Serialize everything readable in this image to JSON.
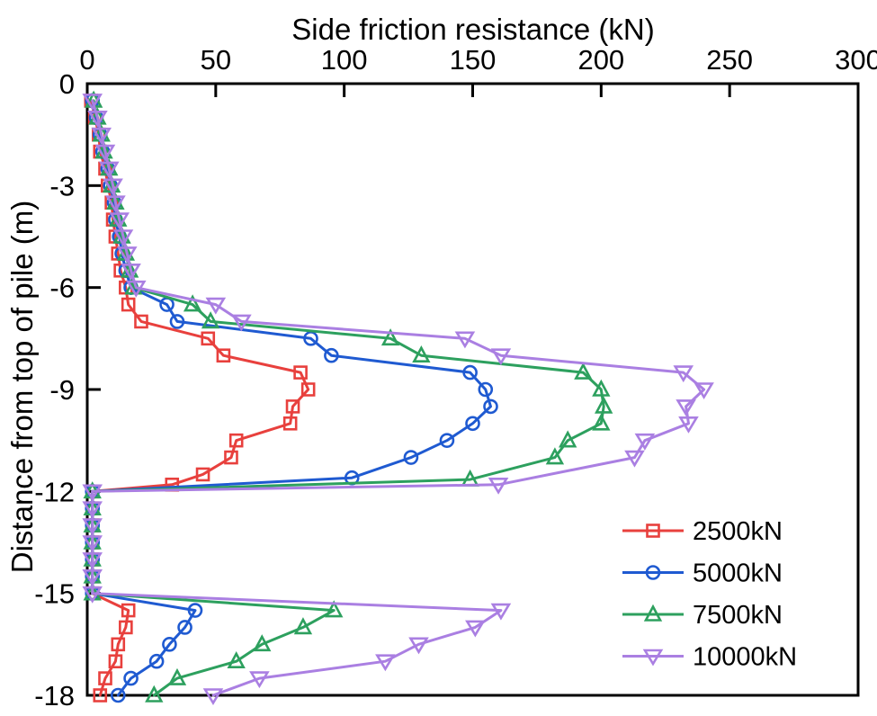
{
  "page": {
    "background": "#ffffff",
    "frame_color": "#000000"
  },
  "chart_data": {
    "type": "line",
    "title": "Side friction resistance (kN)",
    "xlabel": "Side friction resistance (kN)",
    "ylabel": "Distance from top of pile (m)",
    "axes": {
      "x": {
        "min": 0,
        "max": 300,
        "ticks": [
          0,
          50,
          100,
          150,
          200,
          250,
          300
        ],
        "side": "top"
      },
      "y": {
        "min": -18,
        "max": 0,
        "ticks": [
          0,
          -3,
          -6,
          -9,
          -12,
          -15,
          -18
        ],
        "side": "left"
      }
    },
    "grid": false,
    "frame": true,
    "legend": {
      "position": "inside-lower-right",
      "border": false
    },
    "series": [
      {
        "name": "2500kN",
        "color": "#e8403d",
        "marker": "open-square",
        "points": [
          [
            1.5,
            -0.5
          ],
          [
            3,
            -1
          ],
          [
            4.5,
            -1.5
          ],
          [
            5,
            -2
          ],
          [
            7,
            -2.5
          ],
          [
            8,
            -3
          ],
          [
            9.5,
            -3.5
          ],
          [
            10,
            -4
          ],
          [
            11,
            -4.5
          ],
          [
            12,
            -5
          ],
          [
            13,
            -5.5
          ],
          [
            15,
            -6
          ],
          [
            16,
            -6.5
          ],
          [
            21,
            -7
          ],
          [
            47,
            -7.5
          ],
          [
            53,
            -8
          ],
          [
            83,
            -8.5
          ],
          [
            86,
            -9
          ],
          [
            80,
            -9.5
          ],
          [
            79,
            -10
          ],
          [
            58,
            -10.5
          ],
          [
            56,
            -11
          ],
          [
            45,
            -11.5
          ],
          [
            33,
            -11.8
          ],
          [
            2,
            -12
          ],
          [
            2,
            -12.5
          ],
          [
            2,
            -13
          ],
          [
            2,
            -13.5
          ],
          [
            2,
            -14
          ],
          [
            2,
            -14.5
          ],
          [
            2,
            -15
          ],
          [
            16,
            -15.5
          ],
          [
            15,
            -16
          ],
          [
            12,
            -16.5
          ],
          [
            11,
            -17
          ],
          [
            7,
            -17.5
          ],
          [
            5,
            -18
          ]
        ]
      },
      {
        "name": "5000kN",
        "color": "#1f5ad1",
        "marker": "open-circle",
        "points": [
          [
            2,
            -0.5
          ],
          [
            3.5,
            -1
          ],
          [
            5,
            -1.5
          ],
          [
            6,
            -2
          ],
          [
            8,
            -2.5
          ],
          [
            9,
            -3
          ],
          [
            10.5,
            -3.5
          ],
          [
            11,
            -4
          ],
          [
            12.5,
            -4.5
          ],
          [
            13.5,
            -5
          ],
          [
            15,
            -5.5
          ],
          [
            17,
            -6
          ],
          [
            31,
            -6.5
          ],
          [
            35,
            -7
          ],
          [
            87,
            -7.5
          ],
          [
            95,
            -8
          ],
          [
            149,
            -8.5
          ],
          [
            155,
            -9
          ],
          [
            157,
            -9.5
          ],
          [
            150,
            -10
          ],
          [
            140,
            -10.5
          ],
          [
            126,
            -11
          ],
          [
            103,
            -11.6
          ],
          [
            2,
            -12
          ],
          [
            2,
            -12.5
          ],
          [
            2,
            -13
          ],
          [
            2,
            -13.5
          ],
          [
            2,
            -14
          ],
          [
            2,
            -14.5
          ],
          [
            2,
            -15
          ],
          [
            42,
            -15.5
          ],
          [
            38,
            -16
          ],
          [
            32,
            -16.5
          ],
          [
            27,
            -17
          ],
          [
            17,
            -17.5
          ],
          [
            12,
            -18
          ]
        ]
      },
      {
        "name": "7500kN",
        "color": "#2da05e",
        "marker": "open-triangle-up",
        "points": [
          [
            2.5,
            -0.5
          ],
          [
            4,
            -1
          ],
          [
            5.5,
            -1.5
          ],
          [
            6.5,
            -2
          ],
          [
            8.5,
            -2.5
          ],
          [
            9.5,
            -3
          ],
          [
            11,
            -3.5
          ],
          [
            12,
            -4
          ],
          [
            13.5,
            -4.5
          ],
          [
            15,
            -5
          ],
          [
            16.5,
            -5.5
          ],
          [
            18,
            -6
          ],
          [
            41,
            -6.5
          ],
          [
            48,
            -7
          ],
          [
            118,
            -7.5
          ],
          [
            130,
            -8
          ],
          [
            193,
            -8.5
          ],
          [
            200,
            -9
          ],
          [
            201,
            -9.5
          ],
          [
            200,
            -10
          ],
          [
            187,
            -10.5
          ],
          [
            182,
            -11
          ],
          [
            149,
            -11.65
          ],
          [
            2,
            -12
          ],
          [
            2,
            -12.5
          ],
          [
            2,
            -13
          ],
          [
            2,
            -13.5
          ],
          [
            2,
            -14
          ],
          [
            2,
            -14.5
          ],
          [
            2,
            -15
          ],
          [
            96,
            -15.5
          ],
          [
            84,
            -16
          ],
          [
            68,
            -16.5
          ],
          [
            58,
            -17
          ],
          [
            35,
            -17.5
          ],
          [
            26,
            -18
          ]
        ]
      },
      {
        "name": "10000kN",
        "color": "#aa7fe2",
        "marker": "open-triangle-down",
        "points": [
          [
            2,
            -0.5
          ],
          [
            4,
            -1
          ],
          [
            5.5,
            -1.5
          ],
          [
            7,
            -2
          ],
          [
            8.5,
            -2.5
          ],
          [
            10,
            -3
          ],
          [
            11,
            -3.5
          ],
          [
            12.5,
            -4
          ],
          [
            14,
            -4.5
          ],
          [
            15.5,
            -5
          ],
          [
            17,
            -5.5
          ],
          [
            19,
            -6
          ],
          [
            50,
            -6.5
          ],
          [
            60,
            -7
          ],
          [
            147,
            -7.5
          ],
          [
            161,
            -8
          ],
          [
            232,
            -8.5
          ],
          [
            240,
            -9
          ],
          [
            233,
            -9.5
          ],
          [
            234,
            -10
          ],
          [
            217,
            -10.5
          ],
          [
            213,
            -11
          ],
          [
            160,
            -11.8
          ],
          [
            2,
            -12
          ],
          [
            2,
            -12.5
          ],
          [
            2,
            -13
          ],
          [
            2,
            -13.5
          ],
          [
            2,
            -14
          ],
          [
            2,
            -14.5
          ],
          [
            2,
            -15
          ],
          [
            161,
            -15.5
          ],
          [
            151,
            -16
          ],
          [
            129,
            -16.5
          ],
          [
            116,
            -17
          ],
          [
            67,
            -17.5
          ],
          [
            49,
            -18
          ]
        ]
      }
    ]
  }
}
